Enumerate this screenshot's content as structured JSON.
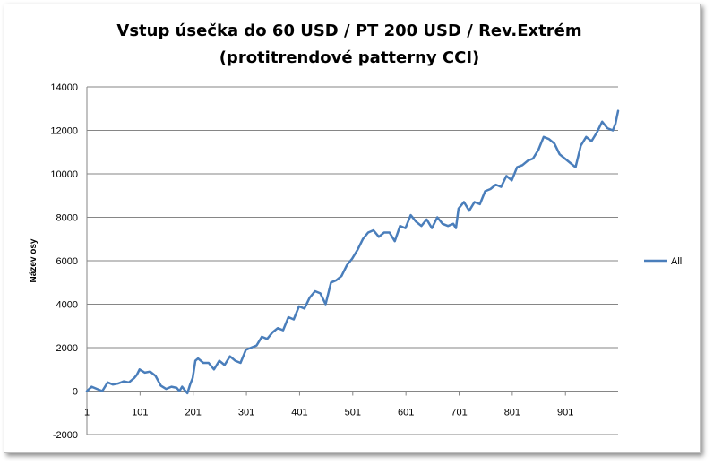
{
  "chart_data": {
    "type": "line",
    "title_line1": "Vstup úsečka do 60 USD / PT 200 USD / Rev.Extrém",
    "title_line2": "(protitrendové patterny CCI)",
    "ylabel": "Název osy",
    "xlabel": "",
    "ylim": [
      -2000,
      14000
    ],
    "yticks": [
      -2000,
      0,
      2000,
      4000,
      6000,
      8000,
      10000,
      12000,
      14000
    ],
    "xlim": [
      1,
      1000
    ],
    "xticks": [
      1,
      101,
      201,
      301,
      401,
      501,
      601,
      701,
      801,
      901
    ],
    "grid": "horizontal",
    "legend_position": "right",
    "series": [
      {
        "name": "All",
        "color": "#4a7ebb",
        "x": [
          1,
          10,
          20,
          30,
          40,
          50,
          60,
          70,
          80,
          90,
          95,
          100,
          110,
          120,
          130,
          140,
          150,
          160,
          170,
          175,
          180,
          185,
          190,
          195,
          200,
          205,
          210,
          220,
          230,
          240,
          250,
          260,
          270,
          280,
          290,
          300,
          310,
          320,
          330,
          340,
          350,
          360,
          370,
          380,
          390,
          400,
          410,
          420,
          430,
          440,
          450,
          460,
          470,
          480,
          490,
          500,
          510,
          520,
          530,
          540,
          550,
          560,
          570,
          580,
          590,
          600,
          610,
          620,
          630,
          640,
          650,
          660,
          670,
          680,
          690,
          695,
          700,
          710,
          720,
          730,
          740,
          750,
          760,
          770,
          780,
          790,
          800,
          810,
          820,
          830,
          840,
          850,
          860,
          870,
          880,
          890,
          900,
          910,
          920,
          930,
          940,
          950,
          960,
          970,
          980,
          990,
          995,
          1000
        ],
        "values": [
          0,
          200,
          100,
          0,
          400,
          300,
          350,
          450,
          400,
          600,
          750,
          1000,
          850,
          900,
          700,
          250,
          100,
          200,
          150,
          0,
          200,
          50,
          -100,
          300,
          600,
          1400,
          1500,
          1300,
          1300,
          1000,
          1400,
          1200,
          1600,
          1400,
          1300,
          1900,
          2000,
          2100,
          2500,
          2400,
          2700,
          2900,
          2800,
          3400,
          3300,
          3900,
          3800,
          4300,
          4600,
          4500,
          4000,
          5000,
          5100,
          5300,
          5800,
          6100,
          6500,
          7000,
          7300,
          7400,
          7100,
          7300,
          7300,
          6900,
          7600,
          7500,
          8100,
          7800,
          7600,
          7900,
          7500,
          8000,
          7700,
          7600,
          7700,
          7500,
          8400,
          8700,
          8300,
          8700,
          8600,
          9200,
          9300,
          9500,
          9400,
          9900,
          9700,
          10300,
          10400,
          10600,
          10700,
          11100,
          11700,
          11600,
          11400,
          10900,
          10700,
          10500,
          10300,
          11300,
          11700,
          11500,
          11900,
          12400,
          12100,
          12000,
          12300,
          12900
        ]
      }
    ]
  }
}
